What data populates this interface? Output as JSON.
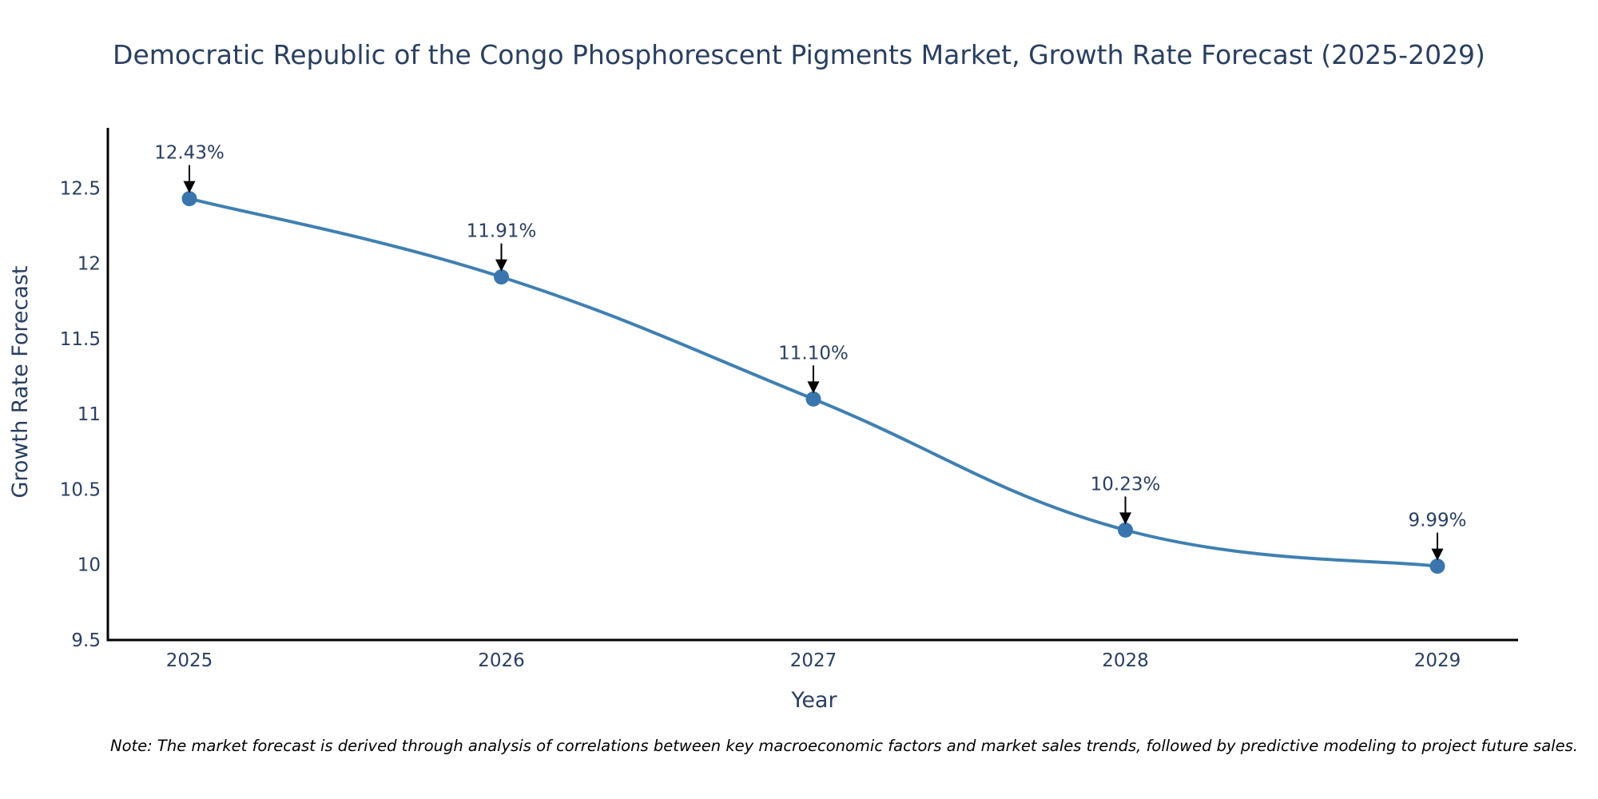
{
  "chart_data": {
    "type": "line",
    "title": "Democratic Republic of the Congo Phosphorescent Pigments Market, Growth Rate Forecast (2025-2029)",
    "xlabel": "Year",
    "ylabel": "Growth Rate Forecast",
    "categories": [
      "2025",
      "2026",
      "2027",
      "2028",
      "2029"
    ],
    "values": [
      12.43,
      11.91,
      11.1,
      10.23,
      9.99
    ],
    "data_labels": [
      "12.43%",
      "11.91%",
      "11.10%",
      "10.23%",
      "9.99%"
    ],
    "ylim": [
      9.5,
      12.9
    ],
    "yticks": [
      9.5,
      10,
      10.5,
      11,
      11.5,
      12,
      12.5
    ],
    "ytick_labels": [
      "9.5",
      "10",
      "10.5",
      "11",
      "11.5",
      "12",
      "12.5"
    ],
    "line_shape": "spline",
    "markers": true,
    "grid": false,
    "legend": "none",
    "line_color": "#4080b0",
    "marker_color": "#3a76ad",
    "annotation_arrow_color": "#000000",
    "note": "Note: The market forecast is derived through analysis of correlations between key macroeconomic factors and market sales trends, followed by predictive modeling to project future sales."
  }
}
